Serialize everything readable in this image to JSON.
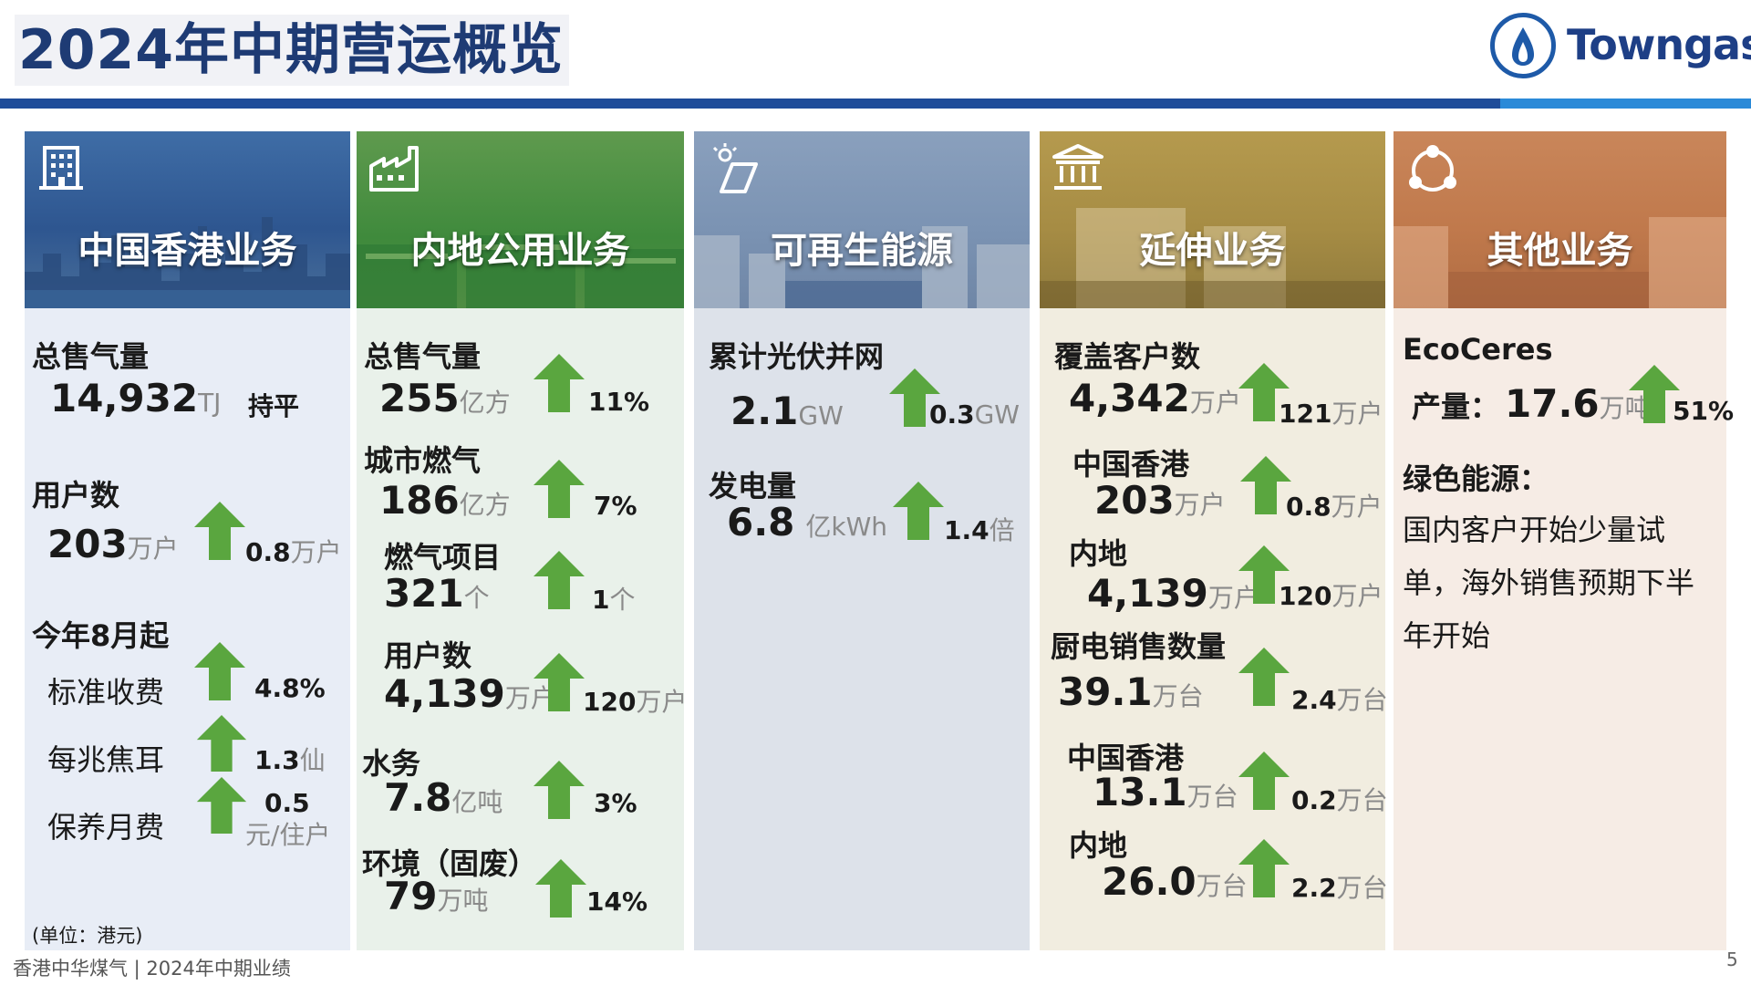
{
  "title": "2024年中期营运概览",
  "logo": {
    "text": "Towngas"
  },
  "colors": {
    "accent": "#1e4c99",
    "arrow": "#5aa63f"
  },
  "columns": {
    "hk": {
      "title": "中国香港业务",
      "total_gas": {
        "label": "总售气量",
        "value": "14,932",
        "unit": "TJ",
        "change": "持平"
      },
      "customers": {
        "label": "用户数",
        "value": "203",
        "unit": "万户",
        "change": "0.8",
        "change_unit": "万户"
      },
      "tariff": {
        "label": "今年8月起",
        "standard": {
          "label": "标准收费",
          "change": "4.8%"
        },
        "per_mj": {
          "label": "每兆焦耳",
          "change": "1.3",
          "change_unit": "仙"
        },
        "maintenance": {
          "label": "保养月费",
          "change": "0.5",
          "change_unit": "元/住户"
        }
      },
      "footnote": "(单位：港元)"
    },
    "mainland": {
      "title": "内地公用业务",
      "total_gas": {
        "label": "总售气量",
        "value": "255",
        "unit": "亿方",
        "change": "11%"
      },
      "city_gas": {
        "label": "城市燃气",
        "value": "186",
        "unit": "亿方",
        "change": "7%"
      },
      "projects": {
        "label": "燃气项目",
        "value": "321",
        "unit": "个",
        "change": "1",
        "change_unit": "个"
      },
      "customers": {
        "label": "用户数",
        "value": "4,139",
        "unit": "万户",
        "change": "120",
        "change_unit": "万户"
      },
      "water": {
        "label": "水务",
        "value": "7.8",
        "unit": "亿吨",
        "change": "3%"
      },
      "waste": {
        "label": "环境（固废）",
        "value": "79",
        "unit": "万吨",
        "change": "14%"
      }
    },
    "renewable": {
      "title": "可再生能源",
      "pv": {
        "label": "累计光伏并网",
        "value": "2.1",
        "unit": "GW",
        "change": "0.3",
        "change_unit": "GW"
      },
      "power": {
        "label": "发电量",
        "value": "6.8",
        "unit": "亿kWh",
        "change": "1.4",
        "change_unit": "倍"
      }
    },
    "extended": {
      "title": "延伸业务",
      "coverage": {
        "label": "覆盖客户数",
        "value": "4,342",
        "unit": "万户",
        "change": "121",
        "change_unit": "万户"
      },
      "coverage_hk": {
        "label": "中国香港",
        "value": "203",
        "unit": "万户",
        "change": "0.8",
        "change_unit": "万户"
      },
      "coverage_ml": {
        "label": "内地",
        "value": "4,139",
        "unit": "万户",
        "change": "120",
        "change_unit": "万户"
      },
      "appliances": {
        "label": "厨电销售数量",
        "value": "39.1",
        "unit": "万台",
        "change": "2.4",
        "change_unit": "万台"
      },
      "appl_hk": {
        "label": "中国香港",
        "value": "13.1",
        "unit": "万台",
        "change": "0.2",
        "change_unit": "万台"
      },
      "appl_ml": {
        "label": "内地",
        "value": "26.0",
        "unit": "万台",
        "change": "2.2",
        "change_unit": "万台"
      }
    },
    "other": {
      "title": "其他业务",
      "brand": "EcoCeres",
      "output": {
        "label": "产量：",
        "value": "17.6",
        "unit": "万吨",
        "change": "51%"
      },
      "green": {
        "label": "绿色能源：",
        "text": "国内客户开始少量试单，海外销售预期下半年开始"
      }
    }
  },
  "footer": {
    "left": "香港中华煤气 | 2024年中期业绩",
    "page": "5"
  }
}
